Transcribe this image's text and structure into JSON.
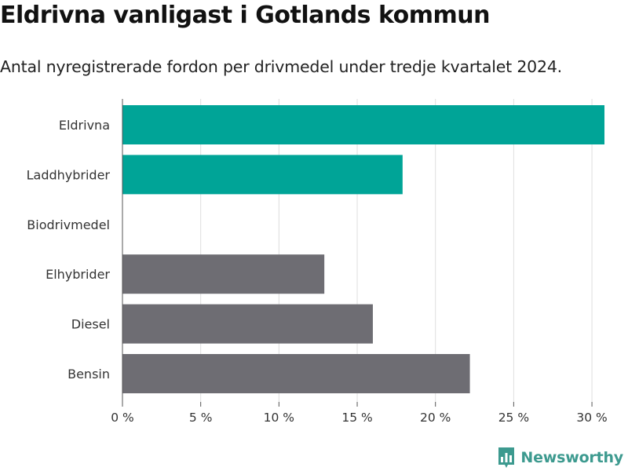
{
  "title": "Eldrivna vanligast i Gotlands kommun",
  "subtitle": "Antal nyregistrerade fordon per drivmedel under tredje kvartalet 2024.",
  "brand": {
    "name": "Newsworthy",
    "icon": "newsworthy-logo-icon",
    "color": "#3d9a8f"
  },
  "chart_data": {
    "type": "bar",
    "orientation": "horizontal",
    "categories": [
      "Eldrivna",
      "Laddhybrider",
      "Biodrivmedel",
      "Elhybrider",
      "Diesel",
      "Bensin"
    ],
    "values": [
      30.8,
      17.9,
      0,
      12.9,
      16.0,
      22.2
    ],
    "colors": [
      "#00a497",
      "#00a497",
      "#6e6d73",
      "#6e6d73",
      "#6e6d73",
      "#6e6d73"
    ],
    "xlim": [
      0,
      31
    ],
    "xticks": [
      0,
      5,
      10,
      15,
      20,
      25,
      30
    ],
    "xtick_labels": [
      "0 %",
      "5 %",
      "10 %",
      "15 %",
      "20 %",
      "25 %",
      "30 %"
    ],
    "grid": true
  }
}
